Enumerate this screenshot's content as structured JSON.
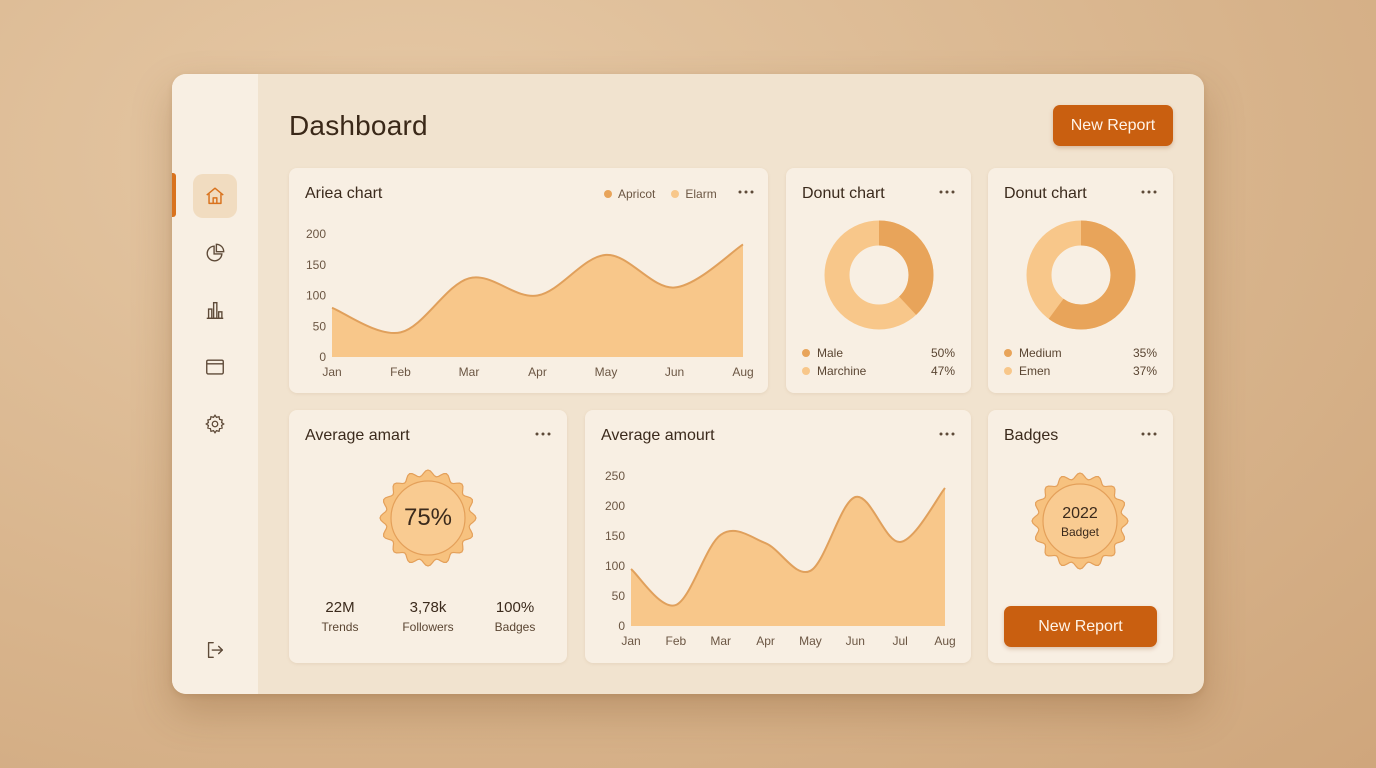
{
  "header": {
    "title": "Dashboard",
    "new_report_label": "New Report"
  },
  "sidebar": {
    "items": [
      {
        "icon": "home-icon",
        "active": true
      },
      {
        "icon": "pie-chart-icon",
        "active": false
      },
      {
        "icon": "bar-chart-icon",
        "active": false
      },
      {
        "icon": "window-icon",
        "active": false
      },
      {
        "icon": "gear-icon",
        "active": false
      }
    ],
    "bottom_icon": "logout-icon"
  },
  "colors": {
    "accent": "#c95f10",
    "apricot": "#e8a45a",
    "elarm": "#f8c78a",
    "area_fill": "#f8c78a",
    "area_stroke": "#e0a05c"
  },
  "area_card": {
    "title": "Ariea chart",
    "legend": [
      {
        "label": "Apricot",
        "color": "#e8a45a"
      },
      {
        "label": "Elarm",
        "color": "#f8c78a"
      }
    ]
  },
  "donut1": {
    "title": "Donut chart",
    "rows": [
      {
        "label": "Male",
        "pct": "50%",
        "color": "#e8a45a"
      },
      {
        "label": "Marchine",
        "pct": "47%",
        "color": "#f8c78a"
      }
    ]
  },
  "donut2": {
    "title": "Donut chart",
    "rows": [
      {
        "label": "Medium",
        "pct": "35%",
        "color": "#e8a45a"
      },
      {
        "label": "Emen",
        "pct": "37%",
        "color": "#f8c78a"
      }
    ]
  },
  "avg_card": {
    "title": "Average amart",
    "seal_value": "75%",
    "stats": [
      {
        "value": "22M",
        "label": "Trends"
      },
      {
        "value": "3,78k",
        "label": "Followers"
      },
      {
        "value": "100%",
        "label": "Badges"
      }
    ]
  },
  "amount_card": {
    "title": "Average amourt"
  },
  "badges_card": {
    "title": "Badges",
    "year": "2022",
    "label": "Badget",
    "button_label": "New Report"
  },
  "chart_data": [
    {
      "type": "area",
      "title": "Ariea chart",
      "categories": [
        "Jan",
        "Feb",
        "Mar",
        "Apr",
        "May",
        "Jun",
        "Aug"
      ],
      "ylim": [
        0,
        200
      ],
      "yticks": [
        0,
        50,
        100,
        150,
        200
      ],
      "series": [
        {
          "name": "Apricot",
          "values": [
            80,
            40,
            128,
            100,
            166,
            113,
            183
          ]
        }
      ]
    },
    {
      "type": "pie",
      "title": "Donut chart",
      "labels": [
        "Male",
        "Marchine"
      ],
      "values": [
        50,
        47
      ],
      "arc_fraction": 0.38
    },
    {
      "type": "pie",
      "title": "Donut chart",
      "labels": [
        "Medium",
        "Emen"
      ],
      "values": [
        35,
        37
      ],
      "arc_fraction": 0.6
    },
    {
      "type": "area",
      "title": "Average amourt",
      "categories": [
        "Jan",
        "Feb",
        "Mar",
        "Apr",
        "May",
        "Jun",
        "Jul",
        "Aug"
      ],
      "ylim": [
        0,
        250
      ],
      "yticks": [
        0,
        50,
        100,
        150,
        200,
        250
      ],
      "series": [
        {
          "values": [
            95,
            35,
            152,
            138,
            92,
            215,
            140,
            230
          ]
        }
      ]
    }
  ]
}
